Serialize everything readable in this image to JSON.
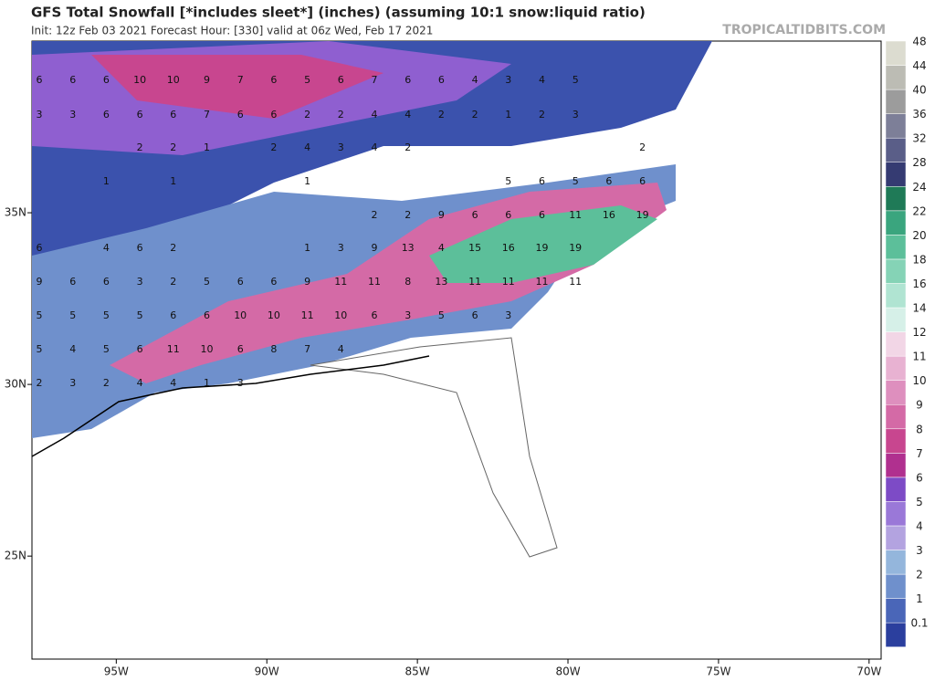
{
  "header": {
    "title": "GFS Total Snowfall [*includes sleet*] (inches) (assuming 10:1 snow:liquid ratio)",
    "subtitle": "Init: 12z Feb 03 2021   Forecast Hour: [330]   valid at 06z Wed, Feb 17 2021",
    "watermark": "TROPICALTIDBITS.COM"
  },
  "map": {
    "xlim": [
      -97.8,
      -69.6
    ],
    "ylim": [
      22,
      40
    ],
    "xticks": [
      {
        "value": -95,
        "label": "95W"
      },
      {
        "value": -90,
        "label": "90W"
      },
      {
        "value": -85,
        "label": "85W"
      },
      {
        "value": -80,
        "label": "80W"
      },
      {
        "value": -75,
        "label": "75W"
      },
      {
        "value": -70,
        "label": "70W"
      }
    ],
    "yticks": [
      {
        "value": 35,
        "label": "35N"
      },
      {
        "value": 30,
        "label": "30N"
      },
      {
        "value": 25,
        "label": "25N"
      }
    ],
    "labels": [
      [
        6,
        6,
        6,
        10,
        10,
        9,
        7,
        6,
        5,
        6,
        7,
        6,
        6,
        4,
        3,
        4,
        5
      ],
      [
        3,
        3,
        6,
        6,
        6,
        7,
        6,
        6,
        2,
        2,
        4,
        4,
        2,
        2,
        1,
        2,
        3
      ],
      [
        2,
        2,
        1,
        2,
        4,
        3,
        4,
        2,
        2
      ],
      [
        1,
        1,
        1,
        5,
        6,
        5,
        6,
        6
      ],
      [
        2,
        2,
        9,
        6,
        6,
        6,
        11,
        16,
        19
      ],
      [
        6,
        4,
        6,
        2,
        1,
        3,
        9,
        13,
        4,
        15,
        16,
        19,
        19
      ],
      [
        9,
        6,
        6,
        3,
        2,
        5,
        6,
        6,
        9,
        11,
        11,
        8,
        13,
        11,
        11,
        11,
        11
      ],
      [
        5,
        5,
        5,
        5,
        6,
        6,
        10,
        10,
        11,
        10,
        6,
        3,
        5,
        6,
        3
      ],
      [
        5,
        4,
        5,
        6,
        11,
        10,
        6,
        8,
        7,
        4
      ],
      [
        2,
        3,
        2,
        4,
        4,
        1,
        3
      ]
    ]
  },
  "colorbar": {
    "levels": [
      0.1,
      1,
      2,
      3,
      4,
      5,
      6,
      7,
      8,
      9,
      10,
      11,
      12,
      14,
      16,
      18,
      20,
      22,
      24,
      28,
      32,
      36,
      40,
      44,
      48
    ],
    "colors": [
      "#2b3f9e",
      "#4a66b8",
      "#6f90cc",
      "#94b6dc",
      "#b3a3e0",
      "#9a78d8",
      "#7d4bc6",
      "#b0308f",
      "#c8468f",
      "#d46aa6",
      "#de8fbe",
      "#e8b2d2",
      "#f2d6e6",
      "#d6f0e8",
      "#b0e4d2",
      "#85d3b6",
      "#5cbf9a",
      "#3aa57e",
      "#1f7a57",
      "#353b72",
      "#5a5e88",
      "#7d7f98",
      "#9c9c9c",
      "#bcbcb4",
      "#dcdcd0"
    ]
  }
}
